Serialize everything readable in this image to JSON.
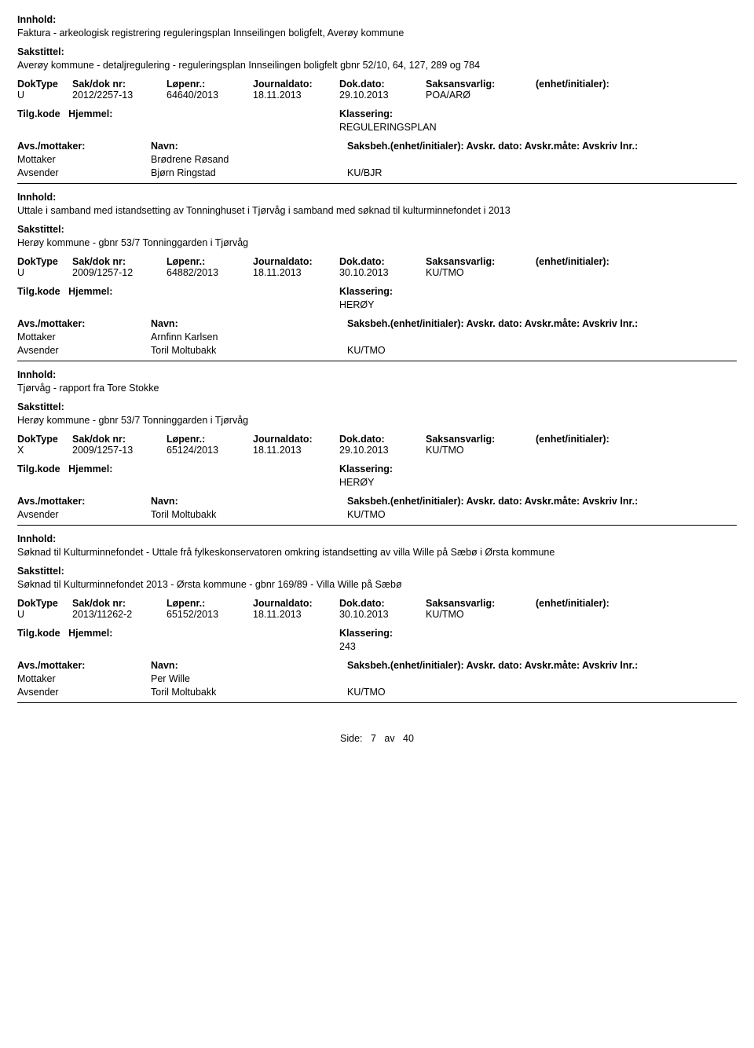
{
  "labels": {
    "innhold": "Innhold:",
    "sakstittel": "Sakstittel:",
    "doktype": "DokType",
    "sakdoknr": "Sak/dok nr:",
    "lopenr": "Løpenr.:",
    "journaldato": "Journaldato:",
    "dokdato": "Dok.dato:",
    "saksansvarlig": "Saksansvarlig:",
    "enhet": "(enhet/initialer):",
    "tilgkode": "Tilg.kode",
    "hjemmel": "Hjemmel:",
    "klassering": "Klassering:",
    "avsmottaker": "Avs./mottaker:",
    "navn": "Navn:",
    "saksbeh_long": "Saksbeh.(enhet/initialer): Avskr. dato: Avskr.måte: Avskriv lnr.:"
  },
  "records": [
    {
      "innhold": "Faktura - arkeologisk registrering reguleringsplan Innseilingen boligfelt, Averøy kommune",
      "sakstittel": "Averøy kommune - detaljregulering - reguleringsplan Innseilingen boligfelt gbnr 52/10, 64, 127, 289 og 784",
      "doktype": "U",
      "sakdoknr": "2012/2257-13",
      "lopenr": "64640/2013",
      "journaldato": "18.11.2013",
      "dokdato": "29.10.2013",
      "saksansvarlig": "POA/ARØ",
      "klassering": "REGULERINGSPLAN",
      "parties": [
        {
          "role": "Mottaker",
          "name": "Brødrene Røsand",
          "code": ""
        },
        {
          "role": "Avsender",
          "name": "Bjørn Ringstad",
          "code": "KU/BJR"
        }
      ]
    },
    {
      "innhold": "Uttale i samband med istandsetting av Tonninghuset i Tjørvåg i samband med søknad til kulturminnefondet i 2013",
      "sakstittel": "Herøy kommune - gbnr 53/7 Tonninggarden i Tjørvåg",
      "doktype": "U",
      "sakdoknr": "2009/1257-12",
      "lopenr": "64882/2013",
      "journaldato": "18.11.2013",
      "dokdato": "30.10.2013",
      "saksansvarlig": "KU/TMO",
      "klassering": "HERØY",
      "parties": [
        {
          "role": "Mottaker",
          "name": "Arnfinn Karlsen",
          "code": ""
        },
        {
          "role": "Avsender",
          "name": "Toril Moltubakk",
          "code": "KU/TMO"
        }
      ]
    },
    {
      "innhold": "Tjørvåg - rapport fra Tore Stokke",
      "sakstittel": "Herøy kommune - gbnr 53/7 Tonninggarden i Tjørvåg",
      "doktype": "X",
      "sakdoknr": "2009/1257-13",
      "lopenr": "65124/2013",
      "journaldato": "18.11.2013",
      "dokdato": "29.10.2013",
      "saksansvarlig": "KU/TMO",
      "klassering": "HERØY",
      "parties": [
        {
          "role": "Avsender",
          "name": "Toril Moltubakk",
          "code": "KU/TMO"
        }
      ]
    },
    {
      "innhold": "Søknad til Kulturminnefondet - Uttale frå fylkeskonservatoren omkring istandsetting av villa Wille på Sæbø i Ørsta kommune",
      "sakstittel": "Søknad til Kulturminnefondet 2013 - Ørsta kommune - gbnr 169/89 - Villa Wille på Sæbø",
      "doktype": "U",
      "sakdoknr": "2013/11262-2",
      "lopenr": "65152/2013",
      "journaldato": "18.11.2013",
      "dokdato": "30.10.2013",
      "saksansvarlig": "KU/TMO",
      "klassering": "243",
      "parties": [
        {
          "role": "Mottaker",
          "name": "Per Wille",
          "code": ""
        },
        {
          "role": "Avsender",
          "name": "Toril Moltubakk",
          "code": "KU/TMO"
        }
      ]
    }
  ],
  "footer": {
    "side": "Side:",
    "page": "7",
    "av": "av",
    "total": "40"
  }
}
